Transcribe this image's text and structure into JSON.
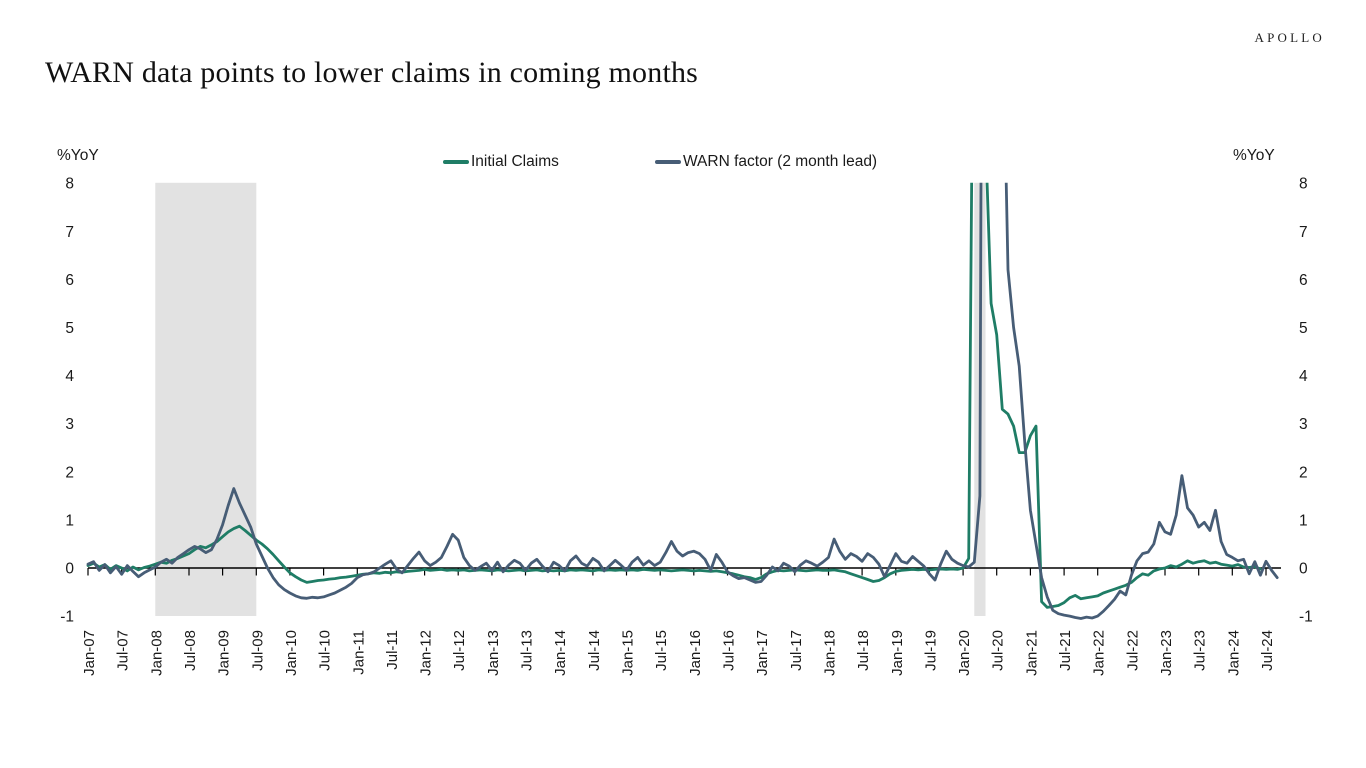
{
  "logo": "APOLLO",
  "title": "WARN data points to lower claims in coming months",
  "axis_left_unit": "%YoY",
  "axis_right_unit": "%YoY",
  "legend": [
    {
      "label": "Initial Claims",
      "color": "#1f7d66"
    },
    {
      "label": "WARN factor (2 month lead)",
      "color": "#475d76"
    }
  ],
  "colors": {
    "recession_band": "#e2e2e2",
    "axis": "#000000"
  },
  "chart_data": {
    "type": "line",
    "title": "WARN data points to lower claims in coming months",
    "ylabel": "%YoY",
    "ylim": [
      -1,
      8
    ],
    "grid": false,
    "legend_position": "top-center",
    "y_ticks": [
      8,
      7,
      6,
      5,
      4,
      3,
      2,
      1,
      0,
      -1
    ],
    "x_tick_labels": [
      "Jan-07",
      "Jul-07",
      "Jan-08",
      "Jul-08",
      "Jan-09",
      "Jul-09",
      "Jan-10",
      "Jul-10",
      "Jan-11",
      "Jul-11",
      "Jan-12",
      "Jul-12",
      "Jan-13",
      "Jul-13",
      "Jan-14",
      "Jul-14",
      "Jan-15",
      "Jul-15",
      "Jan-16",
      "Jul-16",
      "Jan-17",
      "Jul-17",
      "Jan-18",
      "Jul-18",
      "Jan-19",
      "Jul-19",
      "Jan-20",
      "Jul-20",
      "Jan-21",
      "Jul-21",
      "Jan-22",
      "Jul-22",
      "Jan-23",
      "Jul-23",
      "Jan-24",
      "Jul-24"
    ],
    "x_start_month": "Jan-2007",
    "frequency": "monthly",
    "clipping_note": "2020 pandemic spike exceeds y-axis max of 8 and is clipped at top of plot",
    "recession_bands": [
      {
        "from": "Jan-2008",
        "to": "Jul-2009",
        "from_m": 12,
        "to_m": 30
      },
      {
        "from": "Mar-2020",
        "to": "May-2020",
        "from_m": 158,
        "to_m": 160
      }
    ],
    "series": [
      {
        "name": "Initial Claims",
        "color": "#1f7d66",
        "start": "Jan-2007",
        "values": [
          0.05,
          0.1,
          0.02,
          0.07,
          -0.03,
          0.05,
          0.0,
          -0.06,
          0.02,
          -0.04,
          0.01,
          0.04,
          0.08,
          0.12,
          0.1,
          0.16,
          0.2,
          0.25,
          0.3,
          0.38,
          0.45,
          0.42,
          0.48,
          0.55,
          0.65,
          0.75,
          0.82,
          0.87,
          0.78,
          0.68,
          0.58,
          0.5,
          0.4,
          0.28,
          0.15,
          0.02,
          -0.1,
          -0.18,
          -0.25,
          -0.3,
          -0.28,
          -0.26,
          -0.25,
          -0.23,
          -0.22,
          -0.2,
          -0.19,
          -0.17,
          -0.15,
          -0.13,
          -0.12,
          -0.1,
          -0.11,
          -0.09,
          -0.1,
          -0.08,
          -0.09,
          -0.07,
          -0.06,
          -0.05,
          -0.03,
          -0.05,
          -0.04,
          -0.03,
          -0.05,
          -0.04,
          -0.05,
          -0.04,
          -0.06,
          -0.05,
          -0.04,
          -0.05,
          -0.06,
          -0.04,
          -0.05,
          -0.06,
          -0.05,
          -0.04,
          -0.06,
          -0.05,
          -0.04,
          -0.06,
          -0.05,
          -0.06,
          -0.05,
          -0.06,
          -0.04,
          -0.05,
          -0.04,
          -0.05,
          -0.06,
          -0.04,
          -0.05,
          -0.04,
          -0.05,
          -0.04,
          -0.05,
          -0.04,
          -0.05,
          -0.03,
          -0.04,
          -0.05,
          -0.04,
          -0.05,
          -0.06,
          -0.05,
          -0.04,
          -0.05,
          -0.06,
          -0.05,
          -0.06,
          -0.07,
          -0.06,
          -0.08,
          -0.1,
          -0.12,
          -0.15,
          -0.18,
          -0.2,
          -0.24,
          -0.2,
          -0.12,
          -0.08,
          -0.05,
          -0.06,
          -0.05,
          -0.04,
          -0.05,
          -0.06,
          -0.05,
          -0.04,
          -0.05,
          -0.05,
          -0.04,
          -0.06,
          -0.08,
          -0.12,
          -0.16,
          -0.2,
          -0.24,
          -0.28,
          -0.26,
          -0.2,
          -0.12,
          -0.07,
          -0.05,
          -0.04,
          -0.03,
          -0.04,
          -0.03,
          -0.04,
          -0.03,
          -0.02,
          -0.03,
          -0.02,
          -0.03,
          0.0,
          0.2,
          15.0,
          30.0,
          9.0,
          5.5,
          4.85,
          3.3,
          3.2,
          2.95,
          2.4,
          2.4,
          2.75,
          2.95,
          -0.7,
          -0.82,
          -0.8,
          -0.78,
          -0.72,
          -0.62,
          -0.57,
          -0.64,
          -0.62,
          -0.6,
          -0.58,
          -0.52,
          -0.48,
          -0.44,
          -0.4,
          -0.36,
          -0.3,
          -0.2,
          -0.12,
          -0.15,
          -0.06,
          -0.02,
          0.0,
          0.05,
          0.02,
          0.08,
          0.15,
          0.1,
          0.13,
          0.15,
          0.1,
          0.12,
          0.08,
          0.06,
          0.04,
          0.07,
          0.02,
          0.01,
          0.03,
          -0.02
        ]
      },
      {
        "name": "WARN factor (2 month lead)",
        "color": "#475d76",
        "start": "Jan-2007",
        "values": [
          0.08,
          0.13,
          -0.05,
          0.07,
          -0.1,
          0.03,
          -0.13,
          0.05,
          -0.07,
          -0.18,
          -0.1,
          -0.04,
          0.02,
          0.12,
          0.18,
          0.1,
          0.22,
          0.3,
          0.38,
          0.45,
          0.4,
          0.32,
          0.38,
          0.6,
          0.9,
          1.3,
          1.65,
          1.35,
          1.1,
          0.85,
          0.5,
          0.25,
          0.0,
          -0.2,
          -0.35,
          -0.45,
          -0.52,
          -0.58,
          -0.62,
          -0.63,
          -0.61,
          -0.62,
          -0.6,
          -0.56,
          -0.52,
          -0.46,
          -0.4,
          -0.32,
          -0.2,
          -0.14,
          -0.12,
          -0.08,
          0.0,
          0.08,
          0.15,
          -0.02,
          -0.1,
          0.05,
          0.2,
          0.33,
          0.15,
          0.05,
          0.12,
          0.22,
          0.45,
          0.7,
          0.58,
          0.22,
          0.05,
          -0.05,
          0.03,
          0.1,
          -0.05,
          0.12,
          -0.08,
          0.06,
          0.16,
          0.1,
          -0.05,
          0.1,
          0.18,
          0.04,
          -0.08,
          0.12,
          0.05,
          -0.06,
          0.15,
          0.25,
          0.1,
          0.04,
          0.2,
          0.12,
          -0.06,
          0.05,
          0.16,
          0.06,
          -0.05,
          0.12,
          0.22,
          0.06,
          0.15,
          0.05,
          0.12,
          0.32,
          0.55,
          0.35,
          0.25,
          0.32,
          0.35,
          0.3,
          0.18,
          -0.05,
          0.28,
          0.12,
          -0.08,
          -0.16,
          -0.22,
          -0.2,
          -0.25,
          -0.3,
          -0.28,
          -0.15,
          0.02,
          -0.06,
          0.1,
          0.04,
          -0.08,
          0.06,
          0.15,
          0.1,
          0.04,
          0.12,
          0.22,
          0.6,
          0.35,
          0.18,
          0.3,
          0.24,
          0.14,
          0.3,
          0.22,
          0.08,
          -0.18,
          0.06,
          0.3,
          0.14,
          0.1,
          0.24,
          0.14,
          0.04,
          -0.12,
          -0.25,
          0.08,
          0.35,
          0.18,
          0.1,
          0.05,
          0.02,
          0.12,
          1.5,
          35.0,
          35.0,
          28.0,
          12.0,
          6.2,
          5.0,
          4.2,
          2.6,
          1.2,
          0.5,
          -0.2,
          -0.6,
          -0.88,
          -0.95,
          -0.98,
          -1.0,
          -1.03,
          -1.05,
          -1.02,
          -1.04,
          -1.0,
          -0.9,
          -0.78,
          -0.65,
          -0.48,
          -0.56,
          -0.15,
          0.15,
          0.3,
          0.33,
          0.5,
          0.95,
          0.75,
          0.7,
          1.1,
          1.92,
          1.25,
          1.1,
          0.85,
          0.95,
          0.78,
          1.2,
          0.55,
          0.28,
          0.22,
          0.15,
          0.18,
          -0.12,
          0.13,
          -0.15,
          0.14,
          -0.05,
          -0.2
        ]
      }
    ]
  }
}
